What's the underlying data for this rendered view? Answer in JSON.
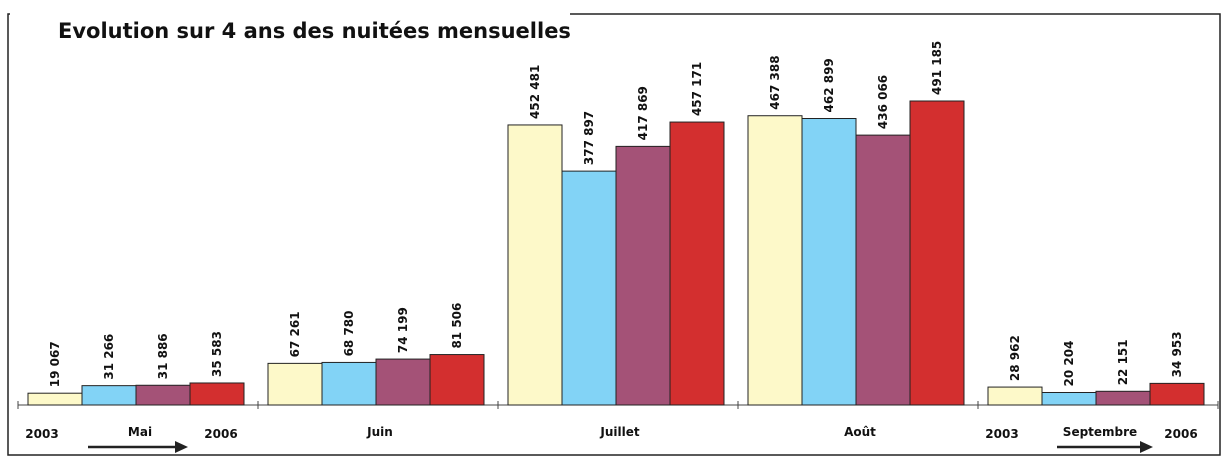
{
  "chart_data": {
    "type": "bar",
    "title": "Evolution sur 4 ans des nuitées mensuelles",
    "categories": [
      "Mai",
      "Juin",
      "Juillet",
      "Août",
      "Septembre"
    ],
    "range_labels": [
      "2003",
      "2006"
    ],
    "series": [
      {
        "color": "#fdf9c9",
        "values": [
          19067,
          67261,
          452481,
          467388,
          28962
        ],
        "value_labels": [
          "19 067",
          "67 261",
          "452 481",
          "467 388",
          "28 962"
        ]
      },
      {
        "color": "#82d3f6",
        "values": [
          31266,
          68780,
          377897,
          462899,
          20204
        ],
        "value_labels": [
          "31 266",
          "68 780",
          "377 897",
          "462 899",
          "20 204"
        ]
      },
      {
        "color": "#a45277",
        "values": [
          31886,
          74199,
          417869,
          436066,
          22151
        ],
        "value_labels": [
          "31 886",
          "74 199",
          "417 869",
          "436 066",
          "22 151"
        ]
      },
      {
        "color": "#d32f2f",
        "values": [
          35583,
          81506,
          457171,
          491185,
          34953
        ],
        "value_labels": [
          "35 583",
          "81 506",
          "457 171",
          "491 185",
          "34 953"
        ]
      }
    ]
  }
}
